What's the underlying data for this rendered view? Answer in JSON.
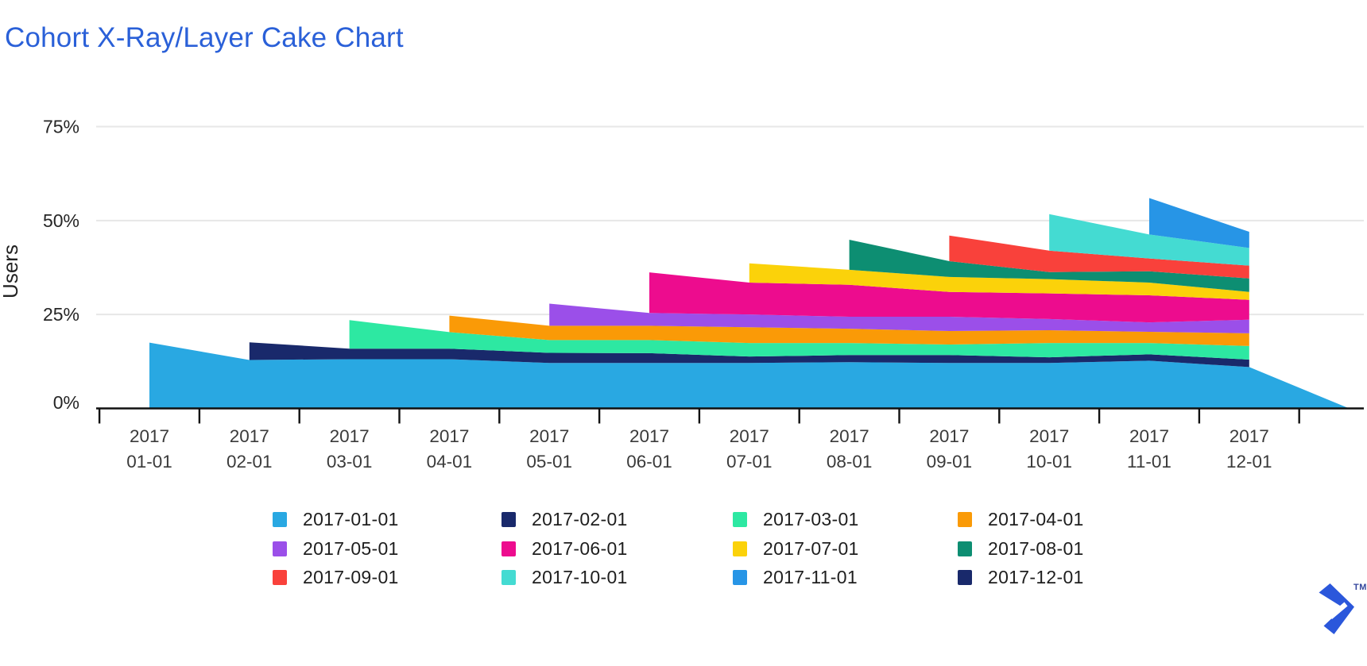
{
  "branding": {
    "tm": "TM",
    "logo_color": "#2B57DB"
  },
  "colors": {
    "title": "#2A60D8",
    "grid": "#E7E7E7",
    "axis": "#101010",
    "tick_text": "#3A3A3A",
    "axis_title_text": "#222222",
    "legend_text": "#1E1E1E"
  },
  "chart_data": {
    "type": "area",
    "variant": "cohort-xray-layer-cake",
    "title": "Cohort X-Ray/Layer Cake Chart",
    "xlabel": "",
    "ylabel": "Users",
    "grid": true,
    "legend_position": "bottom",
    "ylim": [
      0,
      85
    ],
    "y_unit": "%",
    "y_ticks": [
      {
        "label": "75%",
        "value": 75
      },
      {
        "label": "50%",
        "value": 50
      },
      {
        "label": "25%",
        "value": 25
      },
      {
        "label": "0%",
        "value": 0
      }
    ],
    "x_tick_labels": [
      [
        "2017",
        "01-01"
      ],
      [
        "2017",
        "02-01"
      ],
      [
        "2017",
        "03-01"
      ],
      [
        "2017",
        "04-01"
      ],
      [
        "2017",
        "05-01"
      ],
      [
        "2017",
        "06-01"
      ],
      [
        "2017",
        "07-01"
      ],
      [
        "2017",
        "08-01"
      ],
      [
        "2017",
        "09-01"
      ],
      [
        "2017",
        "10-01"
      ],
      [
        "2017",
        "11-01"
      ],
      [
        "2017",
        "12-01"
      ]
    ],
    "cohorts": [
      {
        "label": "2017-01-01",
        "color": "#29A8E2",
        "start_month": 1,
        "retention_pct": [
          17.5,
          12.9,
          13.1,
          13.1,
          12.1,
          12.1,
          12.1,
          12.3,
          12.1,
          12.1,
          12.7,
          11.0
        ],
        "tail": {
          "month": 13,
          "value": 0
        }
      },
      {
        "label": "2017-02-01",
        "color": "#19296B",
        "start_month": 2,
        "retention_pct": [
          4.7,
          2.8,
          2.8,
          2.7,
          2.6,
          1.7,
          1.9,
          2.1,
          1.5,
          1.7,
          2.0
        ]
      },
      {
        "label": "2017-03-01",
        "color": "#2DE8A2",
        "start_month": 3,
        "retention_pct": [
          7.6,
          4.4,
          3.4,
          3.5,
          3.6,
          3.2,
          2.8,
          3.8,
          3.0,
          3.6
        ]
      },
      {
        "label": "2017-04-01",
        "color": "#FA9A07",
        "start_month": 4,
        "retention_pct": [
          4.4,
          3.8,
          3.8,
          4.2,
          3.8,
          3.6,
          3.4,
          3.0,
          3.4
        ]
      },
      {
        "label": "2017-05-01",
        "color": "#9B4FE9",
        "start_month": 5,
        "retention_pct": [
          5.9,
          3.4,
          3.4,
          3.2,
          3.8,
          3.0,
          2.5,
          3.6
        ]
      },
      {
        "label": "2017-06-01",
        "color": "#ED0C8E",
        "start_month": 6,
        "retention_pct": [
          10.8,
          8.5,
          8.5,
          6.6,
          6.8,
          7.2,
          5.3
        ]
      },
      {
        "label": "2017-07-01",
        "color": "#FBD20A",
        "start_month": 7,
        "retention_pct": [
          5.1,
          4.0,
          4.0,
          3.8,
          3.4,
          2.1
        ]
      },
      {
        "label": "2017-08-01",
        "color": "#0D8E72",
        "start_month": 8,
        "retention_pct": [
          8.0,
          4.2,
          1.9,
          3.0,
          3.6
        ]
      },
      {
        "label": "2017-09-01",
        "color": "#F9413B",
        "start_month": 9,
        "retention_pct": [
          6.8,
          5.7,
          3.4,
          3.4
        ]
      },
      {
        "label": "2017-10-01",
        "color": "#44DBD2",
        "start_month": 10,
        "retention_pct": [
          9.7,
          6.4,
          4.7
        ]
      },
      {
        "label": "2017-11-01",
        "color": "#2795E6",
        "start_month": 11,
        "retention_pct": [
          9.7,
          4.3
        ]
      },
      {
        "label": "2017-12-01",
        "color": "#19296B",
        "start_month": 12,
        "retention_pct": []
      }
    ]
  }
}
